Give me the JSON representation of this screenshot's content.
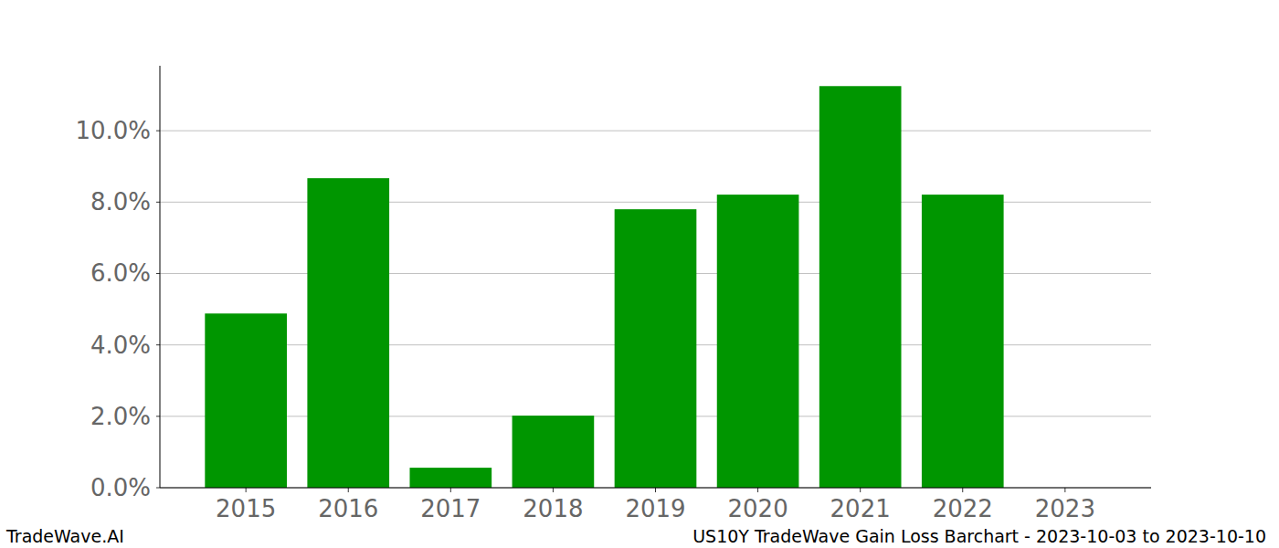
{
  "chart_data": {
    "type": "bar",
    "title": "US10Y TradeWave Gain Loss Barchart - 2023-10-03 to 2023-10-10",
    "annotations": [
      "TradeWave.AI"
    ],
    "categories": [
      "2015",
      "2016",
      "2017",
      "2018",
      "2019",
      "2020",
      "2021",
      "2022",
      "2023"
    ],
    "values": [
      4.88,
      8.67,
      0.56,
      2.02,
      7.8,
      8.21,
      11.25,
      8.21,
      0
    ],
    "color": "#009600",
    "ylim": [
      0,
      11.82
    ],
    "yticks": [
      {
        "value": 0,
        "label": "0.0%"
      },
      {
        "value": 2,
        "label": "2.0%"
      },
      {
        "value": 4,
        "label": "4.0%"
      },
      {
        "value": 6,
        "label": "6.0%"
      },
      {
        "value": 8,
        "label": "8.0%"
      },
      {
        "value": 10,
        "label": "10.0%"
      }
    ],
    "grid": true
  }
}
